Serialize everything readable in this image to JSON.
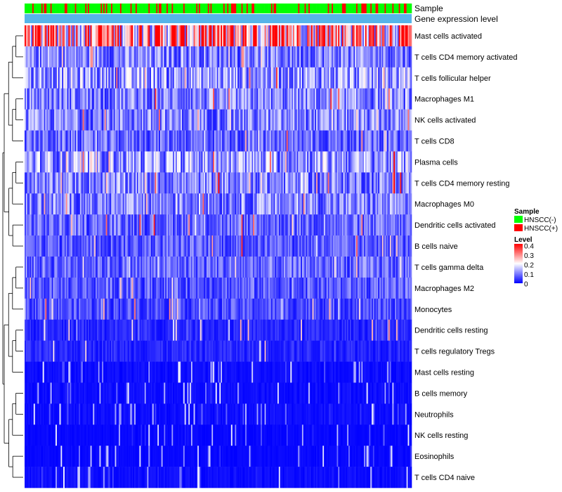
{
  "chart_data": {
    "type": "heatmap",
    "annotation_rows": [
      {
        "label": "Sample"
      },
      {
        "label": "Gene expression level"
      }
    ],
    "rows": [
      "Mast cells activated",
      "T cells CD4 memory activated",
      "T cells follicular helper",
      "Macrophages M1",
      "NK cells activated",
      "T cells CD8",
      "Plasma cells",
      "T cells CD4 memory resting",
      "Macrophages M0",
      "Dendritic cells activated",
      "B cells naive",
      "T cells gamma delta",
      "Macrophages M2",
      "Monocytes",
      "Dendritic cells resting",
      "T cells regulatory  Tregs",
      "Mast cells resting",
      "B cells memory",
      "Neutrophils",
      "NK cells resting",
      "Eosinophils",
      "T cells CD4 naive"
    ],
    "row_mean_levels": [
      0.28,
      0.1,
      0.12,
      0.1,
      0.1,
      0.08,
      0.12,
      0.1,
      0.1,
      0.08,
      0.07,
      0.08,
      0.07,
      0.06,
      0.03,
      0.03,
      0.02,
      0.02,
      0.02,
      0.01,
      0.01,
      0.02
    ],
    "n_samples": 300,
    "sample_groups": [
      "HNSCC(-)",
      "HNSCC(+)"
    ],
    "hnscc_positive_fraction": 0.25,
    "legend": {
      "sample_title": "Sample",
      "sample_entries": [
        {
          "label": "HNSCC(-)",
          "color": "#00ff00"
        },
        {
          "label": "HNSCC(+)",
          "color": "#ff0000"
        }
      ],
      "level_title": "Level",
      "level_ticks": [
        "0.4",
        "0.3",
        "0.2",
        "0.1",
        "0"
      ],
      "level_range": [
        0,
        0.4
      ],
      "color_low": "#0000ff",
      "color_mid": "#ffffff",
      "color_high": "#ff0000"
    },
    "gene_expression_color": "#56b4e9"
  }
}
